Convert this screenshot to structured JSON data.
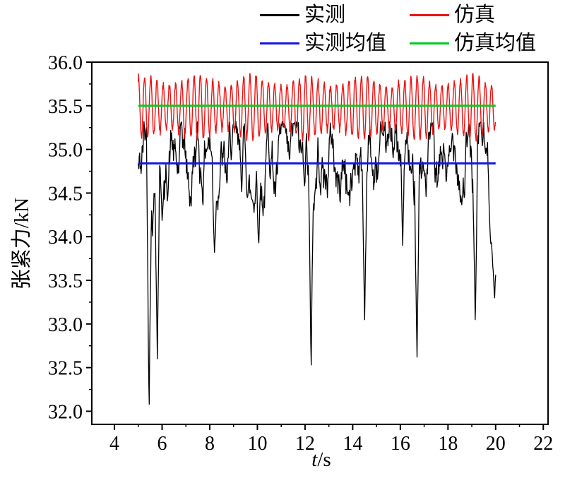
{
  "page": {
    "background": "#ffffff"
  },
  "legend": {
    "items": [
      {
        "label": "实测",
        "color": "#000000",
        "name": "measured"
      },
      {
        "label": "仿真",
        "color": "#ee1111",
        "name": "simulated"
      },
      {
        "label": "实测均值",
        "color": "#1414e6",
        "name": "measured-mean"
      },
      {
        "label": "仿真均值",
        "color": "#00cc22",
        "name": "simulated-mean"
      }
    ]
  },
  "chart_data": {
    "type": "line",
    "title": "",
    "xlabel": "t/s",
    "xlabel_parts": {
      "var": "t",
      "unit": "/s"
    },
    "ylabel": "张紧力/kN",
    "xlim": [
      3.05,
      22.2
    ],
    "ylim": [
      31.85,
      36.0
    ],
    "xticks": [
      4,
      6,
      8,
      10,
      12,
      14,
      16,
      18,
      20,
      22
    ],
    "yticks": [
      32.0,
      32.5,
      33.0,
      33.5,
      34.0,
      34.5,
      35.0,
      35.5,
      36.0
    ],
    "ytick_labels": [
      "32.0",
      "32.5",
      "33.0",
      "33.5",
      "34.0",
      "34.5",
      "35.0",
      "35.5",
      "36.0"
    ],
    "xtick_minor_step": 1,
    "ytick_minor_step": 0.25,
    "grid": false,
    "legend_position": "top",
    "data_t_range": [
      5,
      20
    ],
    "series": [
      {
        "name": "实测",
        "color": "#000000",
        "kind": "noisy-line",
        "width": 1.3,
        "mean": 34.84,
        "typical_band": [
          34.3,
          35.3
        ],
        "gen": {
          "seed": 42,
          "dt": 0.02,
          "cycles": [
            {
              "period": 0.52,
              "amp": 0.22,
              "phase": 0
            },
            {
              "period": 1.31,
              "amp": 0.12,
              "phase": 1.7
            },
            {
              "period": 3.7,
              "amp": 0.08,
              "phase": 0.5
            }
          ],
          "noise_amp": 0.45,
          "noise_smooth": 0.85,
          "clip_max": 35.32
        },
        "spikes": [
          {
            "t": 5.45,
            "v": 32.08,
            "w": 0.1
          },
          {
            "t": 5.8,
            "v": 32.6,
            "w": 0.09
          },
          {
            "t": 8.2,
            "v": 33.82,
            "w": 0.09
          },
          {
            "t": 10.05,
            "v": 33.93,
            "w": 0.09
          },
          {
            "t": 12.25,
            "v": 32.53,
            "w": 0.1
          },
          {
            "t": 14.5,
            "v": 33.05,
            "w": 0.1
          },
          {
            "t": 16.1,
            "v": 33.9,
            "w": 0.08
          },
          {
            "t": 16.7,
            "v": 32.62,
            "w": 0.1
          },
          {
            "t": 19.15,
            "v": 33.05,
            "w": 0.1
          },
          {
            "t": 19.95,
            "v": 33.3,
            "w": 0.3
          }
        ]
      },
      {
        "name": "仿真",
        "color": "#ee1111",
        "kind": "oscillating-line",
        "width": 1.4,
        "mean": 35.48,
        "envelope": [
          35.1,
          35.85
        ],
        "gen": {
          "seed": 7,
          "dt": 0.013,
          "period": 0.26,
          "amp": 0.3,
          "amp_mod": 0.06,
          "amp_mod_period": 2.3,
          "jitter": 0.05
        }
      },
      {
        "name": "实测均值",
        "color": "#1414e6",
        "kind": "hline",
        "width": 3,
        "value": 34.84
      },
      {
        "name": "仿真均值",
        "color": "#00cc22",
        "kind": "hline",
        "width": 3,
        "value": 35.5
      }
    ]
  }
}
